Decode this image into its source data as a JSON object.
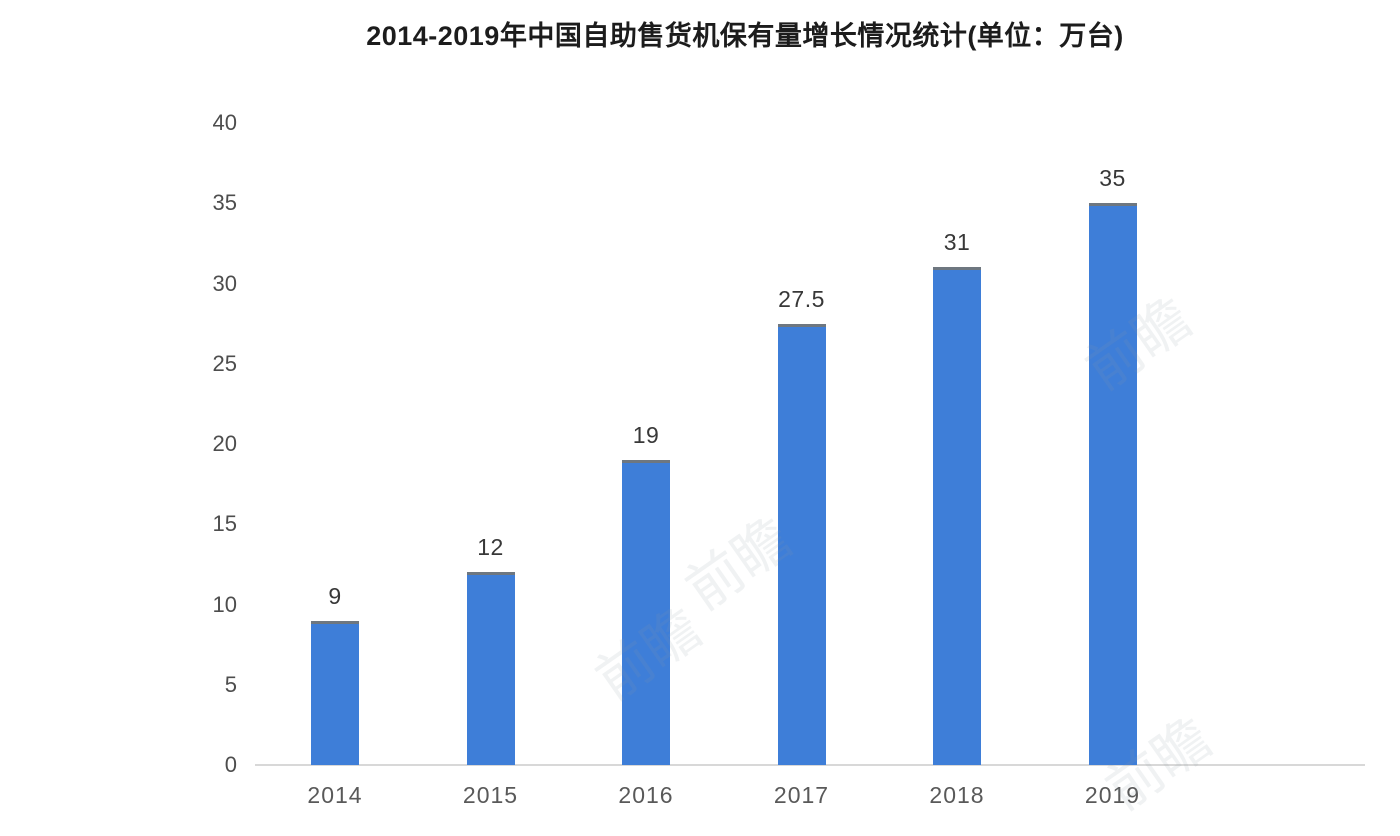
{
  "chart_data": {
    "type": "bar",
    "title": "2014-2019年中国自助售货机保有量增长情况统计(单位：万台)",
    "categories": [
      "2014",
      "2015",
      "2016",
      "2017",
      "2018",
      "2019"
    ],
    "values": [
      9,
      12,
      19,
      27.5,
      31,
      35
    ],
    "value_labels": [
      "9",
      "12",
      "19",
      "27.5",
      "31",
      "35"
    ],
    "xlabel": "",
    "ylabel": "",
    "ylim": [
      0,
      40
    ],
    "yticks": [
      0,
      5,
      10,
      15,
      20,
      25,
      30,
      35,
      40
    ],
    "grid": false,
    "legend": "none",
    "bar_color": "#3e7ed8",
    "bar_cap_color": "#6e7780",
    "axis_line_color": "#d8d8d8",
    "title_color": "#1c1c1c",
    "tick_label_color": "#4d4d4d",
    "value_label_color": "#383838"
  },
  "watermark": {
    "text": "前瞻"
  }
}
